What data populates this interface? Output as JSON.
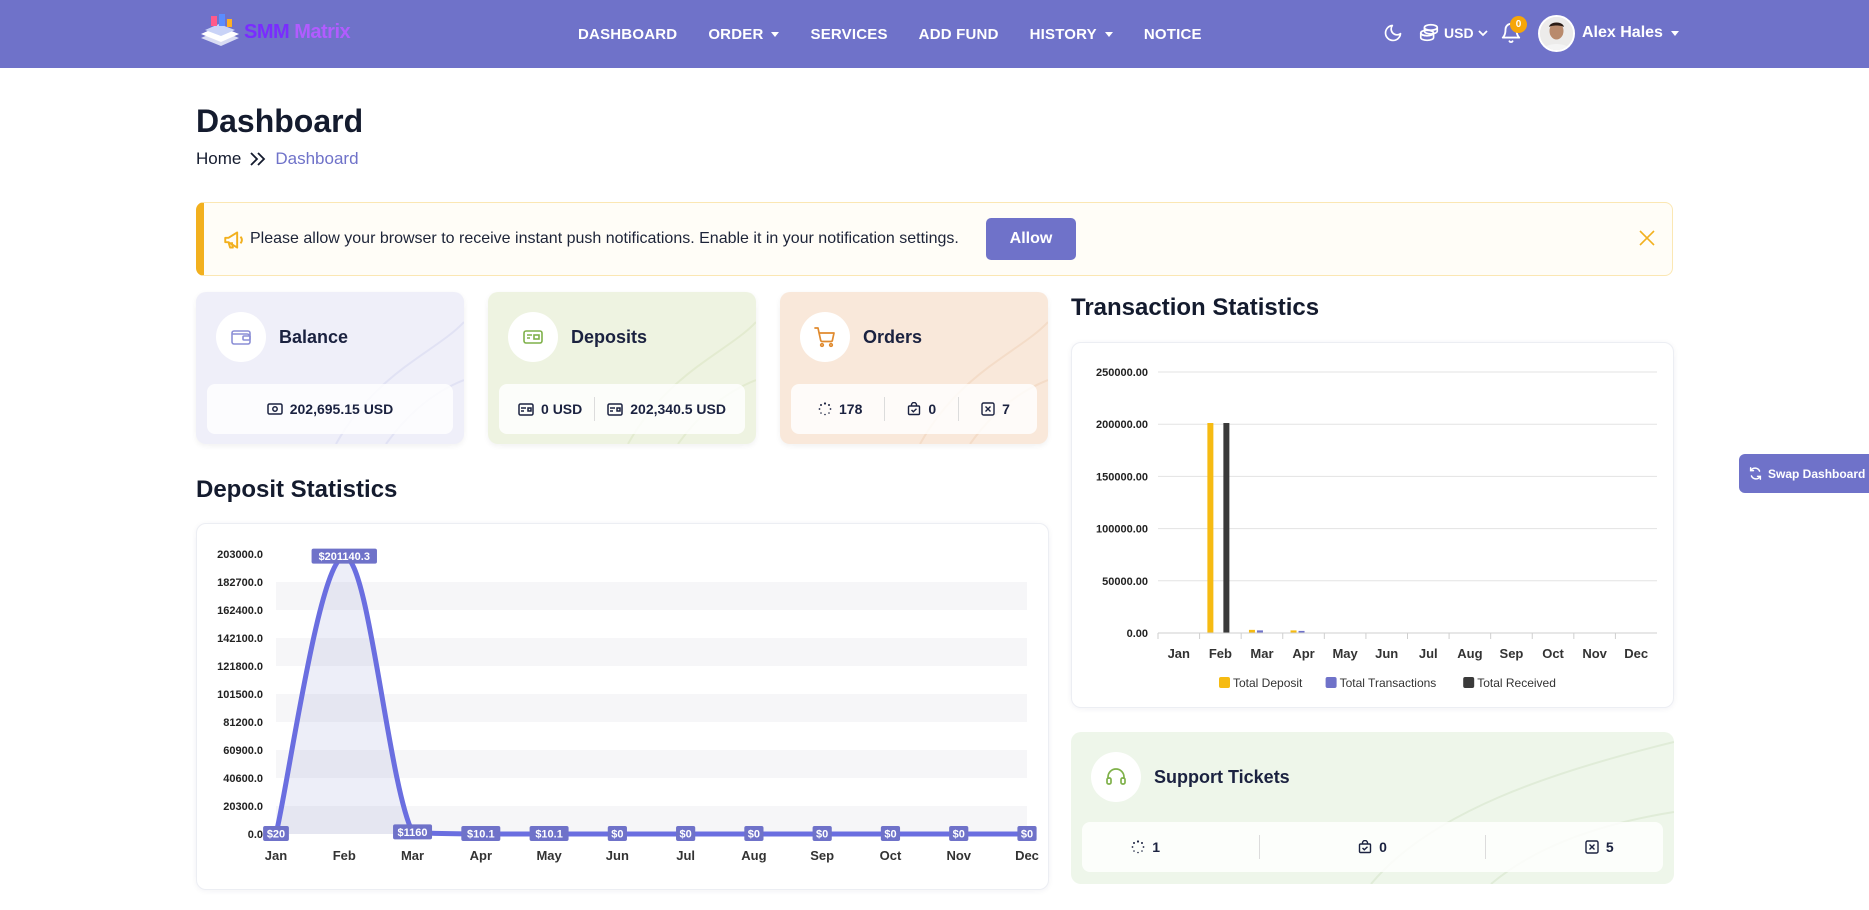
{
  "brand": {
    "name_part1": "SMM",
    "name_part2": "Matrix"
  },
  "nav": {
    "items": [
      {
        "label": "DASHBOARD",
        "dropdown": false
      },
      {
        "label": "ORDER",
        "dropdown": true
      },
      {
        "label": "SERVICES",
        "dropdown": false
      },
      {
        "label": "ADD FUND",
        "dropdown": false
      },
      {
        "label": "HISTORY",
        "dropdown": true
      },
      {
        "label": "NOTICE",
        "dropdown": false
      }
    ],
    "currency": "USD",
    "notification_count": "0",
    "user_name": "Alex Hales"
  },
  "page": {
    "title": "Dashboard",
    "breadcrumb_home": "Home",
    "breadcrumb_current": "Dashboard"
  },
  "alert": {
    "text": "Please allow your browser to receive instant push notifications. Enable it in your notification settings.",
    "button": "Allow"
  },
  "cards": {
    "balance": {
      "label": "Balance",
      "value": "202,695.15 USD"
    },
    "deposits": {
      "label": "Deposits",
      "value1": "0 USD",
      "value2": "202,340.5 USD"
    },
    "orders": {
      "label": "Orders",
      "pending": "178",
      "completed": "0",
      "cancelled": "7"
    }
  },
  "support": {
    "label": "Support Tickets",
    "open": "1",
    "answered": "0",
    "closed": "5"
  },
  "swap_button": "Swap Dashboard",
  "sections": {
    "deposit_title": "Deposit Statistics",
    "transaction_title": "Transaction Statistics"
  },
  "colors": {
    "primary": "#6f72c9",
    "deposit": "#f6bb12",
    "transactions": "#6f72c9",
    "received": "#3a3a3a",
    "badge": "#f6a609"
  },
  "chart_data": [
    {
      "type": "area",
      "title": "Deposit Statistics",
      "categories": [
        "Jan",
        "Feb",
        "Mar",
        "Apr",
        "May",
        "Jun",
        "Jul",
        "Aug",
        "Sep",
        "Oct",
        "Nov",
        "Dec"
      ],
      "series": [
        {
          "values": [
            20,
            201140.3,
            1160,
            10.1,
            10.1,
            0,
            0,
            0,
            0,
            0,
            0,
            0
          ],
          "data_labels": [
            "$20",
            "$201140.3",
            "$1160",
            "$10.1",
            "$10.1",
            "$0",
            "$0",
            "$0",
            "$0",
            "$0",
            "$0",
            "$0"
          ]
        }
      ],
      "y_ticks": [
        "0.0",
        "20300.0",
        "40600.0",
        "60900.0",
        "81200.0",
        "101500.0",
        "121800.0",
        "142100.0",
        "162400.0",
        "182700.0",
        "203000.0"
      ],
      "ylim": [
        0,
        203000
      ],
      "grid": "banded"
    },
    {
      "type": "bar",
      "title": "Transaction Statistics",
      "categories": [
        "Jan",
        "Feb",
        "Mar",
        "Apr",
        "May",
        "Jun",
        "Jul",
        "Aug",
        "Sep",
        "Oct",
        "Nov",
        "Dec"
      ],
      "series": [
        {
          "name": "Total Deposit",
          "values": [
            0,
            201140.3,
            3000,
            2500,
            0,
            0,
            0,
            0,
            0,
            0,
            0,
            0
          ]
        },
        {
          "name": "Total Transactions",
          "values": [
            0,
            0,
            2500,
            2000,
            0,
            0,
            0,
            0,
            0,
            0,
            0,
            0
          ]
        },
        {
          "name": "Total Received",
          "values": [
            0,
            201140.3,
            0,
            0,
            0,
            0,
            0,
            0,
            0,
            0,
            0,
            0
          ]
        }
      ],
      "y_ticks": [
        "0.00",
        "50000.00",
        "100000.00",
        "150000.00",
        "200000.00",
        "250000.00"
      ],
      "ylim": [
        0,
        250000
      ],
      "legend": "bottom",
      "grid": true
    }
  ]
}
